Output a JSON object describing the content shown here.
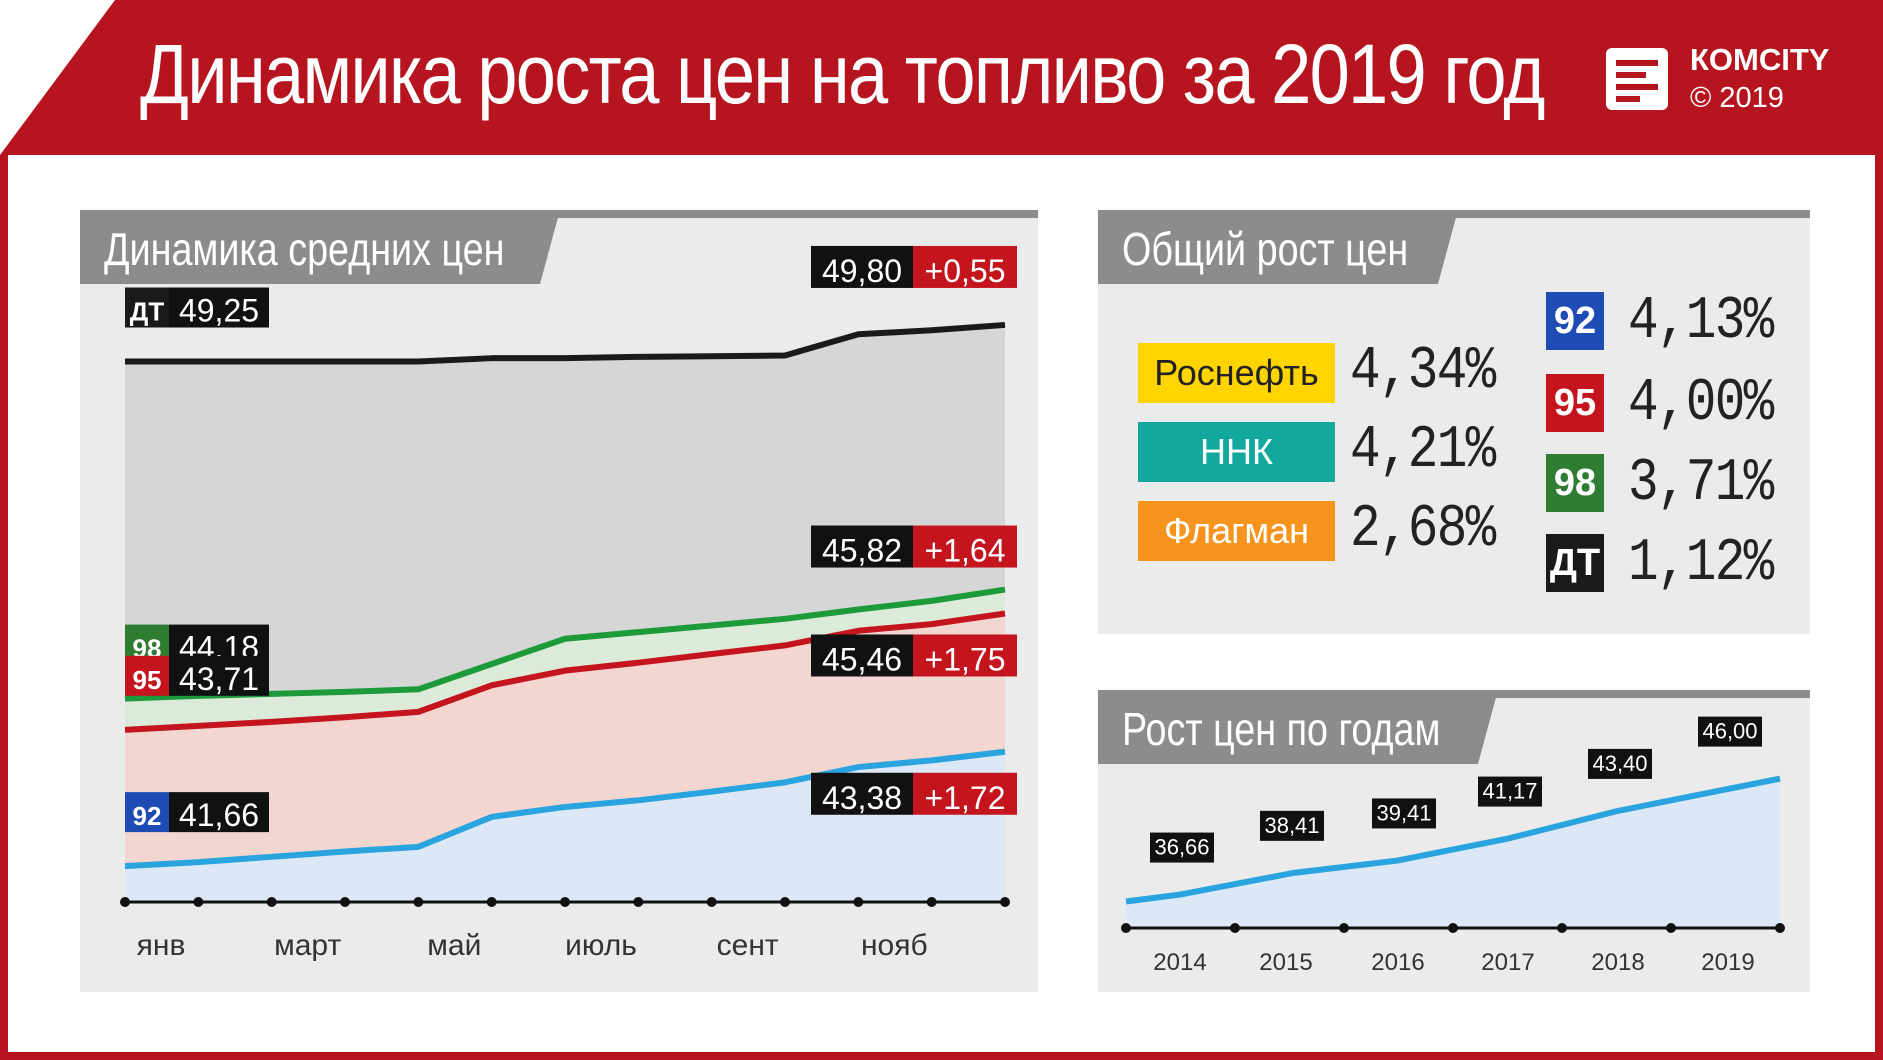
{
  "header": {
    "title": "Динамика роста цен на топливо за 2019 год",
    "brand": "КОМCITY",
    "copyright": "© 2019"
  },
  "colors": {
    "brand_red": "#b6151f",
    "dt": "#1a1a1a",
    "ai98": "#1d9a3a",
    "ai95": "#c4151f",
    "ai92": "#2aa4df",
    "rosneft": "#ffd400",
    "nnk": "#13a89e",
    "flagman": "#f7941d"
  },
  "chart_data": [
    {
      "type": "area",
      "title": "Динамика средних цен",
      "x_labels": [
        "янв",
        "март",
        "май",
        "июль",
        "сент",
        "нояб"
      ],
      "series": [
        {
          "name": "ДТ",
          "start_label": "ДТ",
          "start_value": "49,25",
          "end_value": "49,80",
          "change": "+0,55",
          "values": [
            49.25,
            49.25,
            49.25,
            49.25,
            49.25,
            49.3,
            49.3,
            49.32,
            49.33,
            49.34,
            49.66,
            49.72,
            49.8
          ]
        },
        {
          "name": "98",
          "start_label": "98",
          "start_value": "44,18",
          "end_value": "45,82",
          "change": "+1,64",
          "values": [
            44.18,
            44.22,
            44.25,
            44.28,
            44.32,
            44.7,
            45.08,
            45.18,
            45.28,
            45.38,
            45.52,
            45.65,
            45.82
          ]
        },
        {
          "name": "95",
          "start_label": "95",
          "start_value": "43,71",
          "end_value": "45,46",
          "change": "+1,75",
          "values": [
            43.71,
            43.77,
            43.83,
            43.9,
            43.98,
            44.38,
            44.6,
            44.72,
            44.85,
            44.98,
            45.2,
            45.3,
            45.46
          ]
        },
        {
          "name": "92",
          "start_label": "92",
          "start_value": "41,66",
          "end_value": "43,38",
          "change": "+1,72",
          "values": [
            41.66,
            41.72,
            41.8,
            41.88,
            41.95,
            42.4,
            42.55,
            42.65,
            42.78,
            42.92,
            43.15,
            43.25,
            43.38
          ]
        }
      ]
    },
    {
      "type": "area",
      "title": "Рост цен по годам",
      "x": [
        "2014",
        "2015",
        "2016",
        "2017",
        "2018",
        "2019"
      ],
      "values": [
        36.66,
        38.41,
        39.41,
        41.17,
        43.4,
        46.0
      ],
      "value_labels": [
        "36,66",
        "38,41",
        "39,41",
        "41,17",
        "43,40",
        "46,00"
      ]
    }
  ],
  "overall": {
    "title": "Общий рост цен",
    "companies": [
      {
        "name": "Роснефть",
        "pct": "4,34%",
        "color": "#ffd400",
        "text_color": "#222222"
      },
      {
        "name": "ННК",
        "pct": "4,21%",
        "color": "#13a89e",
        "text_color": "#ffffff"
      },
      {
        "name": "Флагман",
        "pct": "2,68%",
        "color": "#f7941d",
        "text_color": "#ffffff"
      }
    ],
    "fuels": [
      {
        "name": "92",
        "pct": "4,13%",
        "color": "#1f4bb4"
      },
      {
        "name": "95",
        "pct": "4,00%",
        "color": "#c4151f"
      },
      {
        "name": "98",
        "pct": "3,71%",
        "color": "#2e7d32"
      },
      {
        "name": "ДТ",
        "pct": "1,12%",
        "color": "#1a1a1a"
      }
    ]
  }
}
